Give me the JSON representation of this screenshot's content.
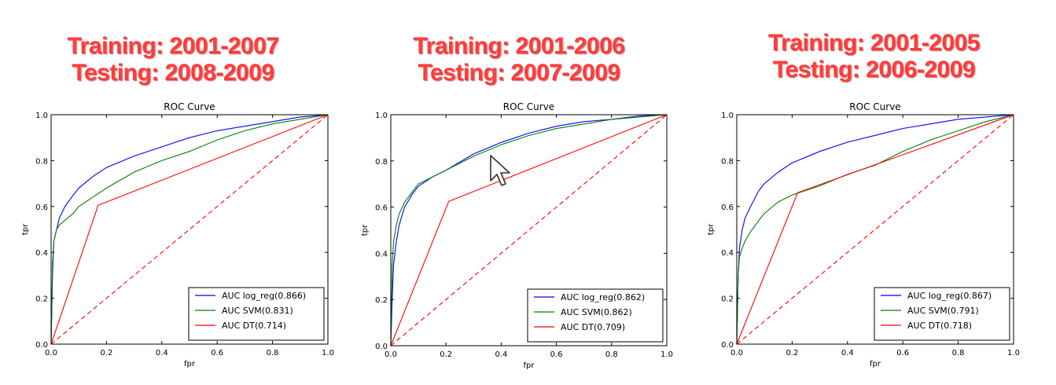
{
  "chart_data": [
    {
      "type": "line",
      "headline": [
        "Training: 2001-2007",
        "Testing: 2008-2009"
      ],
      "title": "ROC Curve",
      "xlabel": "fpr",
      "ylabel": "tpr",
      "xlim": [
        0,
        1
      ],
      "ylim": [
        0,
        1
      ],
      "xticks": [
        "0.0",
        "0.2",
        "0.4",
        "0.6",
        "0.8",
        "1.0"
      ],
      "yticks": [
        "0.0",
        "0.2",
        "0.4",
        "0.6",
        "0.8",
        "1.0"
      ],
      "legend_position": "lower-right",
      "series": [
        {
          "name": "AUC log_reg(0.866)",
          "color": "#0000ff",
          "x": [
            0,
            0.005,
            0.01,
            0.02,
            0.03,
            0.05,
            0.08,
            0.1,
            0.15,
            0.2,
            0.3,
            0.4,
            0.5,
            0.6,
            0.7,
            0.8,
            0.9,
            1.0
          ],
          "y": [
            0,
            0.3,
            0.45,
            0.5,
            0.55,
            0.6,
            0.65,
            0.68,
            0.73,
            0.77,
            0.82,
            0.86,
            0.9,
            0.93,
            0.95,
            0.97,
            0.99,
            1.0
          ]
        },
        {
          "name": "AUC SVM(0.831)",
          "color": "#008000",
          "x": [
            0,
            0.005,
            0.01,
            0.02,
            0.03,
            0.05,
            0.08,
            0.1,
            0.15,
            0.2,
            0.3,
            0.4,
            0.5,
            0.6,
            0.7,
            0.8,
            0.9,
            1.0
          ],
          "y": [
            0,
            0.35,
            0.45,
            0.5,
            0.52,
            0.54,
            0.57,
            0.6,
            0.64,
            0.68,
            0.75,
            0.8,
            0.84,
            0.89,
            0.93,
            0.96,
            0.98,
            1.0
          ]
        },
        {
          "name": "AUC DT(0.714)",
          "color": "#ff0000",
          "x": [
            0,
            0.17,
            1.0
          ],
          "y": [
            0,
            0.605,
            1.0
          ]
        },
        {
          "name": "",
          "color": "#ff0000",
          "dashed": true,
          "x": [
            0,
            1
          ],
          "y": [
            0,
            1
          ]
        }
      ]
    },
    {
      "type": "line",
      "headline": [
        "Training: 2001-2006",
        "Testing: 2007-2009"
      ],
      "title": "ROC Curve",
      "xlabel": "fpr",
      "ylabel": "tpr",
      "xlim": [
        0,
        1
      ],
      "ylim": [
        0,
        1
      ],
      "xticks": [
        "0.0",
        "0.2",
        "0.4",
        "0.6",
        "0.8",
        "1.0"
      ],
      "yticks": [
        "0.0",
        "0.2",
        "0.4",
        "0.6",
        "0.8",
        "1.0"
      ],
      "legend_position": "lower-right",
      "series": [
        {
          "name": "AUC log_reg(0.862)",
          "color": "#0000ff",
          "x": [
            0,
            0.005,
            0.01,
            0.02,
            0.03,
            0.05,
            0.08,
            0.1,
            0.15,
            0.2,
            0.3,
            0.4,
            0.5,
            0.6,
            0.7,
            0.8,
            0.9,
            1.0
          ],
          "y": [
            0,
            0.2,
            0.35,
            0.45,
            0.52,
            0.6,
            0.66,
            0.69,
            0.73,
            0.76,
            0.83,
            0.88,
            0.92,
            0.95,
            0.97,
            0.98,
            0.995,
            1.0
          ]
        },
        {
          "name": "AUC SVM(0.862)",
          "color": "#008000",
          "x": [
            0,
            0.005,
            0.01,
            0.02,
            0.03,
            0.05,
            0.08,
            0.1,
            0.15,
            0.2,
            0.3,
            0.4,
            0.5,
            0.6,
            0.7,
            0.8,
            0.9,
            1.0
          ],
          "y": [
            0,
            0.35,
            0.45,
            0.52,
            0.57,
            0.62,
            0.67,
            0.7,
            0.73,
            0.76,
            0.82,
            0.87,
            0.91,
            0.94,
            0.96,
            0.98,
            0.99,
            1.0
          ]
        },
        {
          "name": "AUC DT(0.709)",
          "color": "#ff0000",
          "x": [
            0,
            0.21,
            1.0
          ],
          "y": [
            0,
            0.625,
            1.0
          ]
        },
        {
          "name": "",
          "color": "#ff0000",
          "dashed": true,
          "x": [
            0,
            1
          ],
          "y": [
            0,
            1
          ]
        }
      ]
    },
    {
      "type": "line",
      "headline": [
        "Training: 2001-2005",
        "Testing: 2006-2009"
      ],
      "title": "ROC Curve",
      "xlabel": "fpr",
      "ylabel": "tpr",
      "xlim": [
        0,
        1
      ],
      "ylim": [
        0,
        1
      ],
      "xticks": [
        "0.0",
        "0.2",
        "0.4",
        "0.6",
        "0.8",
        "1.0"
      ],
      "yticks": [
        "0.0",
        "0.2",
        "0.4",
        "0.6",
        "0.8",
        "1.0"
      ],
      "legend_position": "lower-right",
      "series": [
        {
          "name": "AUC log_reg(0.867)",
          "color": "#0000ff",
          "x": [
            0,
            0.005,
            0.01,
            0.02,
            0.03,
            0.05,
            0.08,
            0.1,
            0.15,
            0.2,
            0.3,
            0.4,
            0.5,
            0.6,
            0.7,
            0.8,
            0.9,
            1.0
          ],
          "y": [
            0,
            0.3,
            0.42,
            0.5,
            0.55,
            0.6,
            0.67,
            0.7,
            0.75,
            0.79,
            0.84,
            0.88,
            0.91,
            0.94,
            0.96,
            0.98,
            0.99,
            1.0
          ]
        },
        {
          "name": "AUC SVM(0.791)",
          "color": "#008000",
          "x": [
            0,
            0.005,
            0.01,
            0.02,
            0.03,
            0.05,
            0.08,
            0.1,
            0.15,
            0.2,
            0.3,
            0.4,
            0.5,
            0.6,
            0.7,
            0.8,
            0.9,
            1.0
          ],
          "y": [
            0,
            0.3,
            0.38,
            0.42,
            0.45,
            0.49,
            0.54,
            0.57,
            0.62,
            0.65,
            0.69,
            0.74,
            0.78,
            0.84,
            0.89,
            0.93,
            0.97,
            1.0
          ]
        },
        {
          "name": "AUC DT(0.718)",
          "color": "#ff0000",
          "x": [
            0,
            0.22,
            1.0
          ],
          "y": [
            0,
            0.66,
            1.0
          ]
        },
        {
          "name": "",
          "color": "#ff0000",
          "dashed": true,
          "x": [
            0,
            1
          ],
          "y": [
            0,
            1
          ]
        }
      ]
    }
  ]
}
